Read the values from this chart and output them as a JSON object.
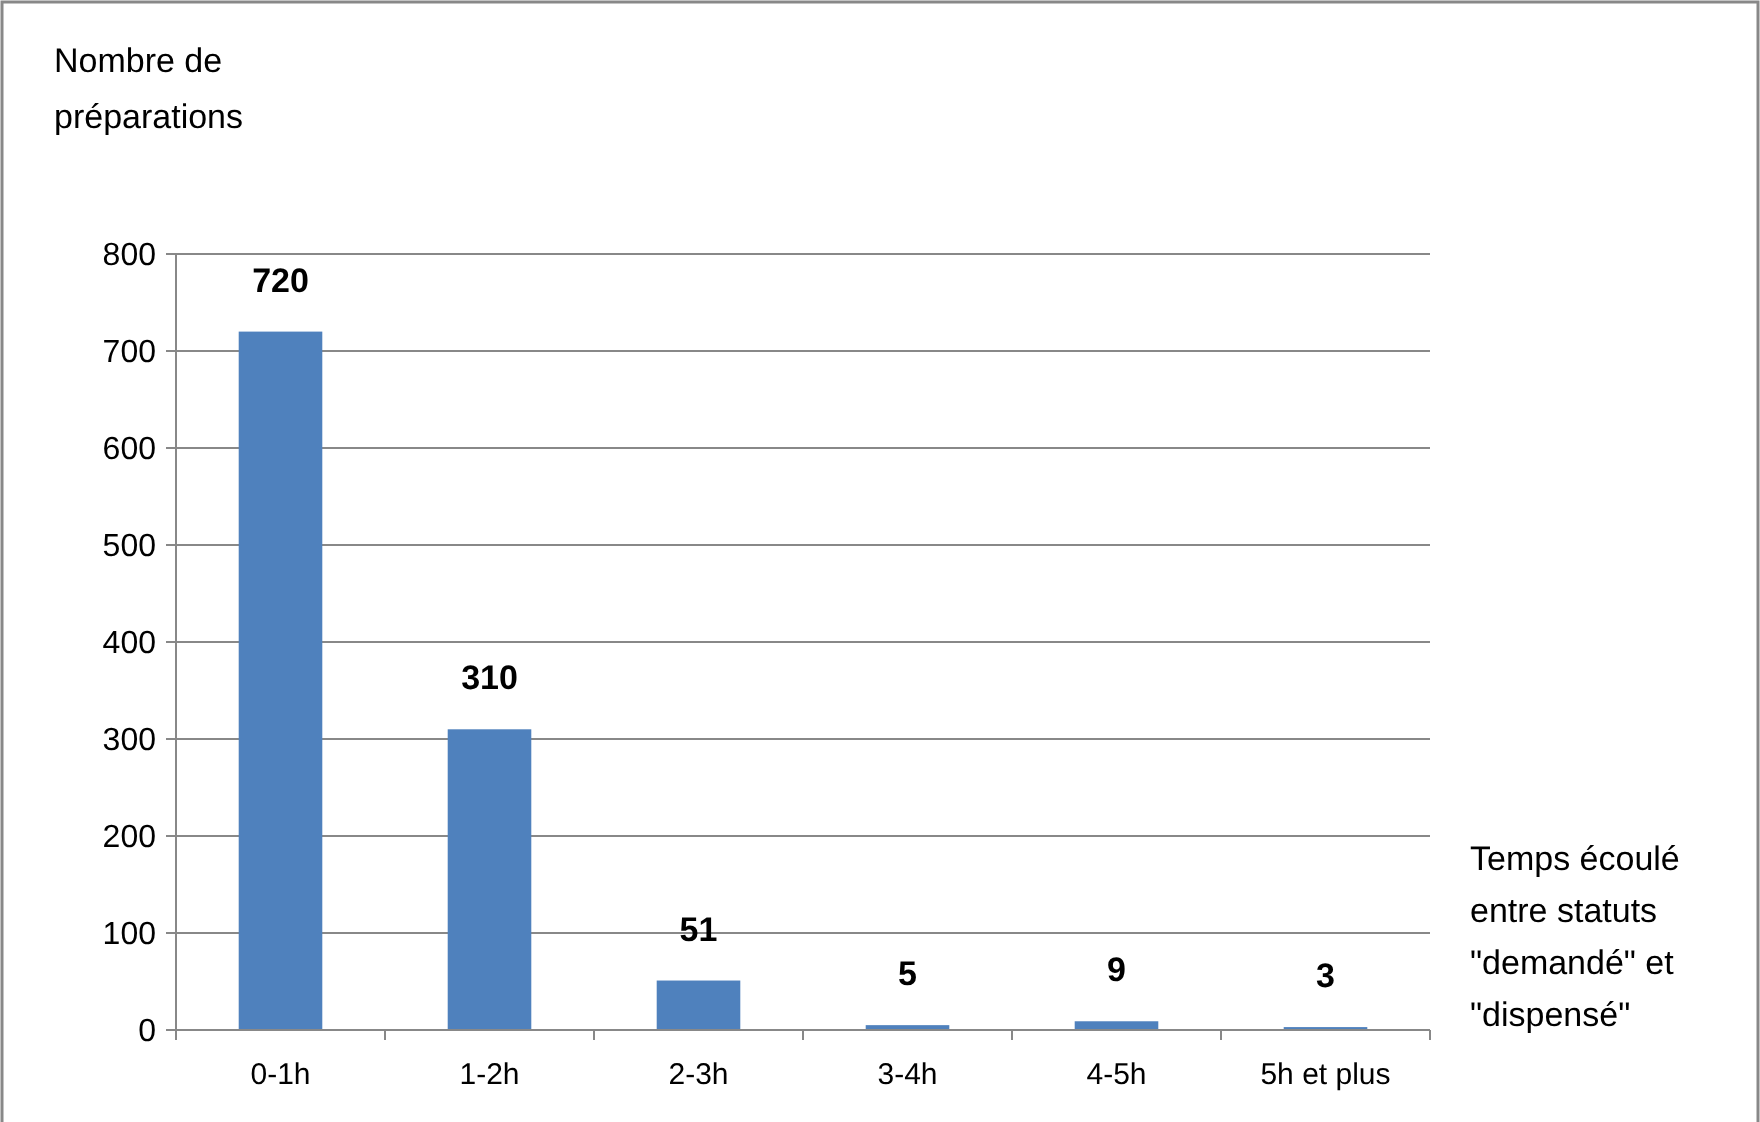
{
  "chart_data": {
    "type": "bar",
    "ylabel": "Nombre de préparations",
    "xlabel": "Temps écoulé entre statuts \"demandé\" et \"dispensé\"",
    "categories": [
      "0-1h",
      "1-2h",
      "2-3h",
      "3-4h",
      "4-5h",
      "5h et plus"
    ],
    "values": [
      720,
      310,
      51,
      5,
      9,
      3
    ],
    "color": "#4f81bd",
    "ylim": [
      0,
      800
    ],
    "yticks": [
      0,
      100,
      200,
      300,
      400,
      500,
      600,
      700,
      800
    ],
    "grid": "y",
    "data_labels": true
  }
}
